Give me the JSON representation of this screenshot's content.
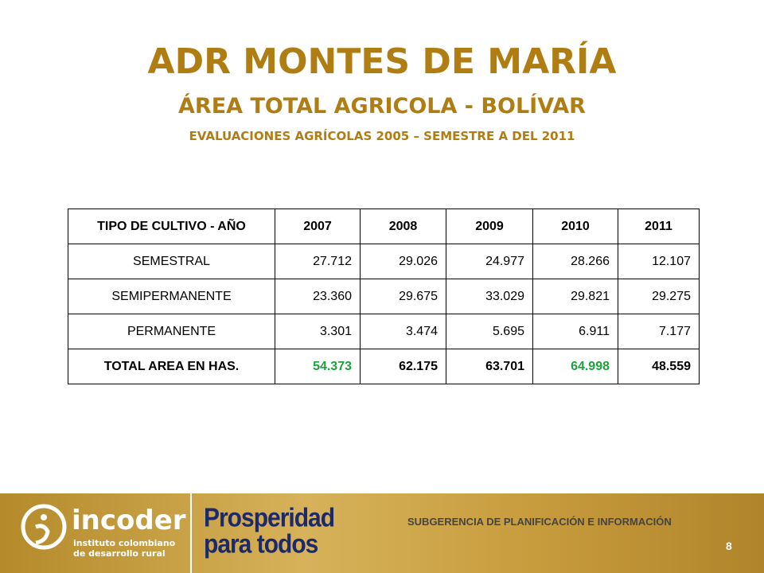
{
  "header": {
    "title": "ADR MONTES DE MARÍA",
    "subtitle": "ÁREA TOTAL AGRICOLA - BOLÍVAR",
    "note": "EVALUACIONES AGRÍCOLAS 2005 – SEMESTRE A DEL 2011"
  },
  "table": {
    "columns": [
      "TIPO DE CULTIVO  - AÑO",
      "2007",
      "2008",
      "2009",
      "2010",
      "2011"
    ],
    "rows": [
      [
        "SEMESTRAL",
        "27.712",
        "29.026",
        "24.977",
        "28.266",
        "12.107"
      ],
      [
        "SEMIPERMANENTE",
        "23.360",
        "29.675",
        "33.029",
        "29.821",
        "29.275"
      ],
      [
        "PERMANENTE",
        "3.301",
        "3.474",
        "5.695",
        "6.911",
        "7.177"
      ],
      [
        "TOTAL AREA EN HAS.",
        "54.373",
        "62.175",
        "63.701",
        "64.998",
        "48.559"
      ]
    ]
  },
  "footer": {
    "logo_name": "incoder",
    "logo_tagline_1": "instituto colombiano",
    "logo_tagline_2": "de desarrollo rural",
    "slogan_1": "Prosperidad",
    "slogan_2": "para todos",
    "department": "SUBGERENCIA DE PLANIFICACIÓN E INFORMACIÓN",
    "page": "8"
  }
}
